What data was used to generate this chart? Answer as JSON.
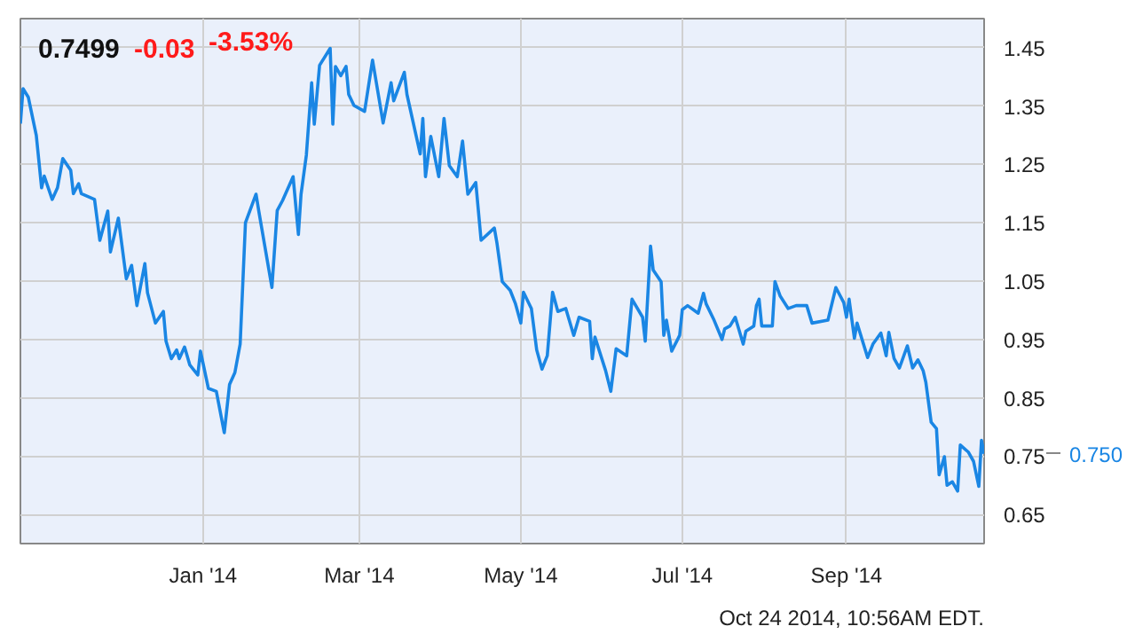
{
  "chart_data": {
    "type": "line",
    "title": "0.7499",
    "annotations": [
      "-0.03",
      "-3.53%",
      "Oct 24 2014, 10:56AM EDT.",
      "0.750"
    ],
    "x": [
      "2013-10-24",
      "2013-10-25",
      "2013-10-27",
      "2013-10-30",
      "2013-11-01",
      "2013-11-02",
      "2013-11-05",
      "2013-11-07",
      "2013-11-09",
      "2013-11-12",
      "2013-11-13",
      "2013-11-15",
      "2013-11-16",
      "2013-11-21",
      "2013-11-23",
      "2013-11-26",
      "2013-11-27",
      "2013-11-30",
      "2013-12-03",
      "2013-12-05",
      "2013-12-07",
      "2013-12-10",
      "2013-12-11",
      "2013-12-14",
      "2013-12-17",
      "2013-12-18",
      "2013-12-20",
      "2013-12-22",
      "2013-12-23",
      "2013-12-25",
      "2013-12-27",
      "2013-12-30",
      "2013-12-31",
      "2014-01-03",
      "2014-01-06",
      "2014-01-09",
      "2014-01-11",
      "2014-01-13",
      "2014-01-15",
      "2014-01-17",
      "2014-01-21",
      "2014-01-22",
      "2014-01-27",
      "2014-01-29",
      "2014-01-31",
      "2014-02-04",
      "2014-02-06",
      "2014-02-07",
      "2014-02-09",
      "2014-02-11",
      "2014-02-12",
      "2014-02-14",
      "2014-02-18",
      "2014-02-19",
      "2014-02-20",
      "2014-02-22",
      "2014-02-24",
      "2014-02-25",
      "2014-02-27",
      "2014-03-03",
      "2014-03-06",
      "2014-03-10",
      "2014-03-13",
      "2014-03-14",
      "2014-03-18",
      "2014-03-19",
      "2014-03-24",
      "2014-03-25",
      "2014-03-26",
      "2014-03-28",
      "2014-03-31",
      "2014-04-02",
      "2014-04-04",
      "2014-04-07",
      "2014-04-09",
      "2014-04-11",
      "2014-04-14",
      "2014-04-16",
      "2014-04-21",
      "2014-04-22",
      "2014-04-24",
      "2014-04-27",
      "2014-04-29",
      "2014-05-01",
      "2014-05-02",
      "2014-05-05",
      "2014-05-07",
      "2014-05-09",
      "2014-05-11",
      "2014-05-13",
      "2014-05-15",
      "2014-05-18",
      "2014-05-21",
      "2014-05-23",
      "2014-05-27",
      "2014-05-28",
      "2014-05-29",
      "2014-06-02",
      "2014-06-04",
      "2014-06-06",
      "2014-06-10",
      "2014-06-12",
      "2014-06-16",
      "2014-06-17",
      "2014-06-19",
      "2014-06-20",
      "2014-06-23",
      "2014-06-24",
      "2014-06-25",
      "2014-06-27",
      "2014-06-30",
      "2014-07-01",
      "2014-07-03",
      "2014-07-07",
      "2014-07-09",
      "2014-07-10",
      "2014-07-13",
      "2014-07-16",
      "2014-07-17",
      "2014-07-19",
      "2014-07-21",
      "2014-07-24",
      "2014-07-25",
      "2014-07-28",
      "2014-07-29",
      "2014-07-30",
      "2014-07-31",
      "2014-08-04",
      "2014-08-05",
      "2014-08-07",
      "2014-08-10",
      "2014-08-13",
      "2014-08-17",
      "2014-08-19",
      "2014-08-25",
      "2014-08-28",
      "2014-08-31",
      "2014-09-01",
      "2014-09-02",
      "2014-09-04",
      "2014-09-05",
      "2014-09-09",
      "2014-09-11",
      "2014-09-14",
      "2014-09-16",
      "2014-09-17",
      "2014-09-19",
      "2014-09-21",
      "2014-09-24",
      "2014-09-26",
      "2014-09-28",
      "2014-09-30",
      "2014-10-01",
      "2014-10-03",
      "2014-10-05",
      "2014-10-06",
      "2014-10-08",
      "2014-10-09",
      "2014-10-11",
      "2014-10-13",
      "2014-10-14",
      "2014-10-17",
      "2014-10-19",
      "2014-10-21",
      "2014-10-22",
      "2014-10-23"
    ],
    "series": [
      {
        "color": "#1a86e4",
        "values": [
          1.32,
          1.38,
          1.365,
          1.3,
          1.21,
          1.23,
          1.19,
          1.21,
          1.26,
          1.24,
          1.2,
          1.217,
          1.2,
          1.19,
          1.12,
          1.17,
          1.1,
          1.158,
          1.054,
          1.077,
          1.008,
          1.08,
          1.03,
          0.978,
          0.998,
          0.947,
          0.917,
          0.932,
          0.917,
          0.937,
          0.906,
          0.889,
          0.93,
          0.866,
          0.861,
          0.79,
          0.873,
          0.893,
          0.942,
          1.15,
          1.199,
          1.171,
          1.039,
          1.171,
          1.188,
          1.229,
          1.13,
          1.199,
          1.266,
          1.39,
          1.319,
          1.42,
          1.449,
          1.319,
          1.418,
          1.402,
          1.418,
          1.37,
          1.351,
          1.341,
          1.429,
          1.321,
          1.39,
          1.359,
          1.408,
          1.37,
          1.268,
          1.329,
          1.229,
          1.298,
          1.229,
          1.329,
          1.248,
          1.229,
          1.29,
          1.199,
          1.219,
          1.12,
          1.141,
          1.115,
          1.049,
          1.034,
          1.011,
          0.978,
          1.031,
          1.003,
          0.932,
          0.899,
          0.922,
          1.031,
          0.998,
          1.003,
          0.957,
          0.988,
          0.981,
          0.917,
          0.954,
          0.897,
          0.861,
          0.934,
          0.922,
          1.019,
          0.988,
          0.947,
          1.11,
          1.069,
          1.049,
          0.957,
          0.983,
          0.93,
          0.957,
          1.001,
          1.008,
          0.995,
          1.029,
          1.011,
          0.983,
          0.95,
          0.968,
          0.973,
          0.988,
          0.942,
          0.964,
          0.973,
          1.008,
          1.019,
          0.973,
          0.973,
          1.049,
          1.024,
          1.003,
          1.008,
          1.008,
          0.978,
          0.983,
          1.039,
          1.013,
          0.988,
          1.019,
          0.952,
          0.978,
          0.919,
          0.942,
          0.961,
          0.922,
          0.962,
          0.917,
          0.901,
          0.939,
          0.901,
          0.915,
          0.896,
          0.876,
          0.808,
          0.797,
          0.718,
          0.749,
          0.7,
          0.706,
          0.69,
          0.769,
          0.757,
          0.741,
          0.698,
          0.777,
          0.754
        ]
      }
    ],
    "xlim": [
      "2013-10-24",
      "2014-10-23"
    ],
    "xticks": [
      {
        "value": "2014-01-01",
        "label": "Jan '14"
      },
      {
        "value": "2014-03-01",
        "label": "Mar '14"
      },
      {
        "value": "2014-05-01",
        "label": "May '14"
      },
      {
        "value": "2014-07-01",
        "label": "Jul '14"
      },
      {
        "value": "2014-09-01",
        "label": "Sep '14"
      }
    ],
    "ylim": [
      0.6,
      1.5
    ],
    "yticks": [
      0.65,
      0.75,
      0.85,
      0.95,
      1.05,
      1.15,
      1.25,
      1.35,
      1.45
    ],
    "grid": true,
    "marker": "none",
    "line_style": "solid"
  }
}
